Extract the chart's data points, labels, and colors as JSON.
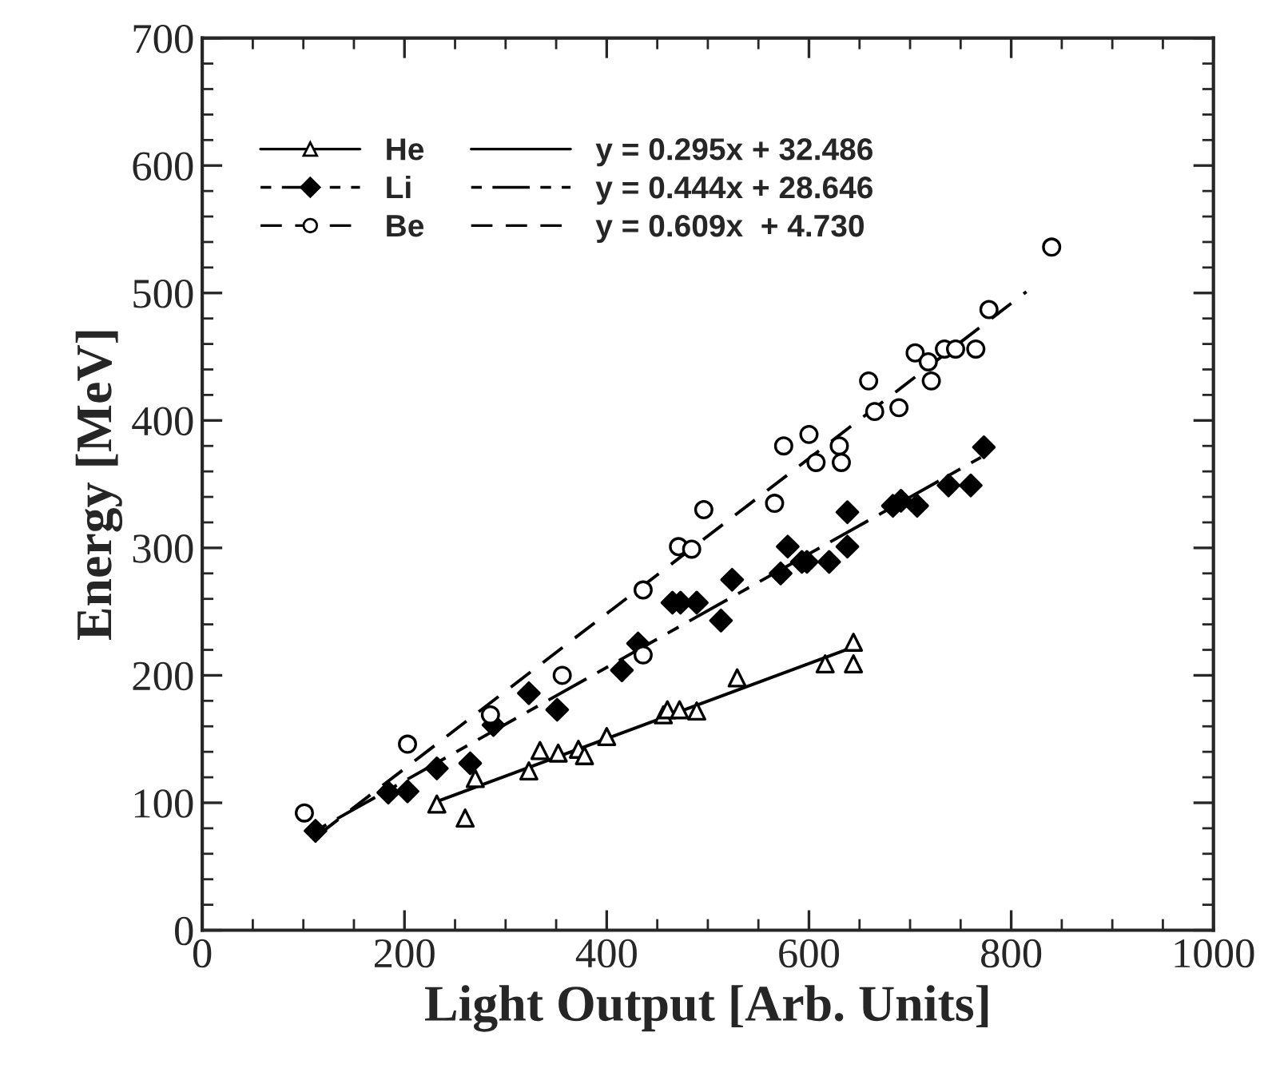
{
  "chart_data": {
    "type": "scatter",
    "xlabel": "Light Output [Arb. Units]",
    "ylabel": "Energy [MeV]",
    "xlim": [
      0,
      1000
    ],
    "xticks": [
      0,
      200,
      400,
      600,
      800,
      1000
    ],
    "ylim": [
      0,
      700
    ],
    "yticks": [
      0,
      100,
      200,
      300,
      400,
      500,
      600,
      700
    ],
    "grid": false,
    "legend": "top left",
    "series": [
      {
        "name": "He",
        "marker": "triangle",
        "line_style": "solid",
        "color": "#000000",
        "x": [
          232,
          260,
          270,
          323,
          334,
          352,
          372,
          378,
          400,
          456,
          460,
          472,
          489,
          529,
          616,
          644,
          644
        ],
        "values": [
          99,
          88,
          119,
          125,
          141,
          139,
          142,
          137,
          152,
          169,
          173,
          173,
          172,
          198,
          209,
          226,
          209
        ]
      },
      {
        "name": "Li",
        "marker": "diamond",
        "line_style": "dashdot",
        "color": "#000000",
        "x": [
          112,
          184,
          203,
          232,
          265,
          288,
          323,
          351,
          415,
          431,
          465,
          473,
          489,
          513,
          524,
          572,
          579,
          593,
          598,
          620,
          638,
          638,
          683,
          691,
          707,
          738,
          760,
          773
        ],
        "values": [
          78,
          108,
          109,
          127,
          131,
          161,
          186,
          173,
          204,
          225,
          257,
          257,
          257,
          243,
          275,
          280,
          301,
          289,
          289,
          289,
          301,
          328,
          333,
          337,
          333,
          349,
          349,
          379
        ]
      },
      {
        "name": "Be",
        "marker": "circle",
        "line_style": "dashed",
        "color": "#000000",
        "x": [
          101,
          203,
          285,
          356,
          436,
          436,
          471,
          484,
          496,
          566,
          575,
          600,
          607,
          630,
          632,
          659,
          665,
          689,
          705,
          718,
          721,
          734,
          745,
          765,
          778,
          840
        ],
        "values": [
          92,
          146,
          169,
          200,
          216,
          267,
          301,
          299,
          330,
          335,
          380,
          389,
          367,
          380,
          367,
          431,
          407,
          410,
          453,
          446,
          431,
          456,
          456,
          456,
          487,
          536
        ]
      },
      {
        "name": "y = 0.295x + 32.486",
        "type": "line",
        "line_style": "solid",
        "color": "#000000",
        "x": [
          232,
          640
        ],
        "values": [
          101,
          221
        ]
      },
      {
        "name": "y = 0.444x + 28.646",
        "type": "line",
        "line_style": "dashdot",
        "color": "#000000",
        "x": [
          112,
          770
        ],
        "values": [
          78,
          371
        ]
      },
      {
        "name": "y = 0.609x  + 4.730",
        "type": "line",
        "line_style": "dashed",
        "color": "#000000",
        "x": [
          115,
          815
        ],
        "values": [
          75,
          501
        ]
      }
    ]
  }
}
